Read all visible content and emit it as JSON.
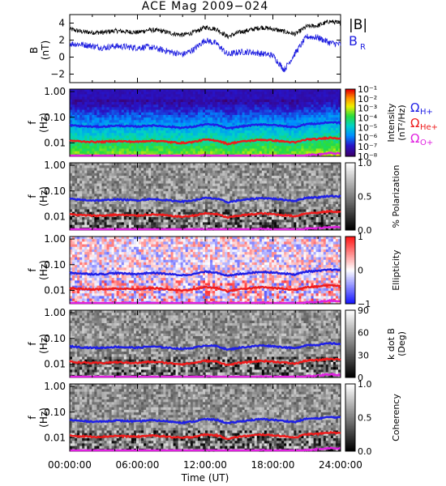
{
  "figure": {
    "title": "ACE Mag 2009−024",
    "xlabel": "Time (UT)",
    "x_ticks": [
      "00:00:00",
      "06:00:00",
      "12:00:00",
      "18:00:00",
      "24:00:00"
    ]
  },
  "legend": {
    "b_total": "|B|",
    "b_r": "B",
    "b_r_sub": "R",
    "omega": "Ω",
    "h": "H+",
    "he": "He+",
    "o": "O+",
    "colors": {
      "b_total": "#000000",
      "b_r": "#2020e0",
      "h": "#1f1fe6",
      "he": "#ee1b1b",
      "o": "#e020e0"
    }
  },
  "chart_data": [
    {
      "type": "line",
      "panel": "magnetic-field",
      "ylabel": "B",
      "yunit": "(nT)",
      "yticks": [
        "4",
        "2",
        "0",
        "−2"
      ],
      "ylim": [
        -3,
        5
      ],
      "xlim": [
        0,
        24
      ],
      "series": [
        {
          "name": "|B|",
          "color": "#000000",
          "x": [
            0,
            1,
            2,
            3,
            4,
            5,
            6,
            7,
            8,
            9,
            10,
            11,
            12,
            13,
            14,
            15,
            16,
            17,
            18,
            19,
            20,
            21,
            22,
            23,
            24
          ],
          "values": [
            3.3,
            3.0,
            2.9,
            2.9,
            3.1,
            3.0,
            2.9,
            3.2,
            3.1,
            2.8,
            2.6,
            2.9,
            3.5,
            3.3,
            2.4,
            2.9,
            3.2,
            3.5,
            3.3,
            3.0,
            2.7,
            3.6,
            3.7,
            4.2,
            4.0
          ]
        },
        {
          "name": "B_R",
          "color": "#2020e0",
          "x": [
            0,
            1,
            2,
            3,
            4,
            5,
            6,
            7,
            8,
            9,
            10,
            11,
            12,
            13,
            14,
            15,
            16,
            17,
            18,
            19,
            20,
            21,
            22,
            23,
            24
          ],
          "values": [
            1.6,
            1.5,
            1.3,
            1.1,
            1.3,
            1.2,
            1.1,
            1.2,
            0.9,
            0.6,
            0.3,
            0.9,
            2.0,
            1.6,
            0.3,
            0.6,
            0.6,
            0.4,
            0.2,
            -1.5,
            0.5,
            2.4,
            2.3,
            1.7,
            1.5
          ]
        }
      ]
    },
    {
      "type": "heatmap",
      "panel": "intensity",
      "ylabel": "f",
      "yunit": "(Hz)",
      "yticks": [
        "1.00",
        "0.10",
        "0.01"
      ],
      "colorbar_label": "Intensity",
      "colorbar_unit": "(nT²/Hz)",
      "colorbar_ticks": [
        "10⁻¹",
        "10⁻²",
        "10⁻³",
        "10⁻⁴",
        "10⁻⁵",
        "10⁻⁶",
        "10⁻⁷",
        "10⁻⁸"
      ],
      "colormap": "rainbow"
    },
    {
      "type": "heatmap",
      "panel": "polarization",
      "ylabel": "f",
      "yunit": "(Hz)",
      "yticks": [
        "1.00",
        "0.10",
        "0.01"
      ],
      "colorbar_label": "% Polarization",
      "colorbar_ticks": [
        "1.0",
        "0.5",
        "0.0"
      ],
      "colormap": "gray"
    },
    {
      "type": "heatmap",
      "panel": "ellipticity",
      "ylabel": "f",
      "yunit": "(Hz)",
      "yticks": [
        "1.00",
        "0.10",
        "0.01"
      ],
      "colorbar_label": "Ellipticity",
      "colorbar_ticks": [
        "1",
        "0",
        "−1"
      ],
      "colormap": "blue-white-red"
    },
    {
      "type": "heatmap",
      "panel": "k-dot-b",
      "ylabel": "f",
      "yunit": "(Hz)",
      "yticks": [
        "1.00",
        "0.10",
        "0.01"
      ],
      "colorbar_label": "k dot B",
      "colorbar_unit": "(Deg)",
      "colorbar_ticks": [
        "90",
        "60",
        "30",
        "0"
      ],
      "colormap": "gray"
    },
    {
      "type": "heatmap",
      "panel": "coherency",
      "ylabel": "f",
      "yunit": "(Hz)",
      "yticks": [
        "1.00",
        "0.10",
        "0.01"
      ],
      "colorbar_label": "Coherency",
      "colorbar_ticks": [
        "1.0",
        "0.5",
        "0.0"
      ],
      "colormap": "gray"
    }
  ],
  "gyrofrequency_lines": {
    "x": [
      0,
      1,
      2,
      3,
      4,
      5,
      6,
      7,
      8,
      9,
      10,
      11,
      12,
      13,
      14,
      15,
      16,
      17,
      18,
      19,
      20,
      21,
      22,
      23,
      24
    ],
    "h_hz": [
      0.049,
      0.045,
      0.043,
      0.043,
      0.047,
      0.045,
      0.043,
      0.048,
      0.046,
      0.042,
      0.039,
      0.043,
      0.053,
      0.05,
      0.036,
      0.043,
      0.048,
      0.053,
      0.05,
      0.045,
      0.041,
      0.055,
      0.056,
      0.064,
      0.061
    ],
    "he_hz": [
      0.0123,
      0.0114,
      0.011,
      0.011,
      0.0118,
      0.0114,
      0.011,
      0.0121,
      0.0118,
      0.0106,
      0.0099,
      0.011,
      0.0133,
      0.0125,
      0.0091,
      0.011,
      0.0121,
      0.0133,
      0.0125,
      0.0114,
      0.0103,
      0.0137,
      0.0141,
      0.016,
      0.0152
    ],
    "o_hz": [
      0.0031,
      0.0029,
      0.0028,
      0.0028,
      0.003,
      0.0029,
      0.0028,
      0.003,
      0.0029,
      0.0027,
      0.0025,
      0.0028,
      0.0033,
      0.0031,
      0.0023,
      0.0028,
      0.003,
      0.0033,
      0.0031,
      0.0029,
      0.0026,
      0.0034,
      0.0035,
      0.004,
      0.0038
    ]
  }
}
